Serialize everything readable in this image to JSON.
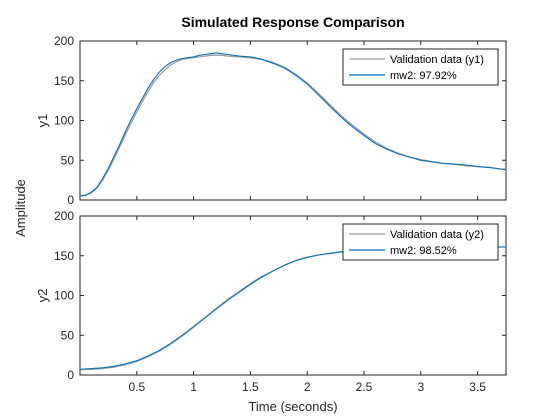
{
  "chart_data": {
    "type": "line",
    "title": "Simulated Response Comparison",
    "xlabel": "Time (seconds)",
    "shared_ylabel": "Amplitude",
    "grid": false,
    "x_ticks": [
      0.5,
      1,
      1.5,
      2,
      2.5,
      3,
      3.5
    ],
    "colors": {
      "validation": "#a0a0a0",
      "model": "#0072bd",
      "axes": "#262626"
    },
    "subplots": [
      {
        "ylabel": "y1",
        "xlim": [
          0.0,
          3.75
        ],
        "ylim": [
          0,
          200
        ],
        "y_ticks": [
          0,
          50,
          100,
          150,
          200
        ],
        "legend_position": "top-right",
        "series": [
          {
            "name": "Validation data (y1)",
            "x": [
              0.0,
              0.05,
              0.1,
              0.15,
              0.2,
              0.25,
              0.3,
              0.35,
              0.4,
              0.45,
              0.5,
              0.55,
              0.6,
              0.65,
              0.7,
              0.75,
              0.8,
              0.85,
              0.9,
              0.95,
              1.0,
              1.05,
              1.1,
              1.15,
              1.2,
              1.25,
              1.3,
              1.4,
              1.5,
              1.6,
              1.7,
              1.8,
              1.9,
              2.0,
              2.1,
              2.2,
              2.3,
              2.4,
              2.5,
              2.6,
              2.7,
              2.8,
              2.9,
              3.0,
              3.1,
              3.2,
              3.3,
              3.4,
              3.5,
              3.6,
              3.7,
              3.75
            ],
            "values": [
              5,
              6,
              9,
              15,
              25,
              38,
              52,
              67,
              82,
              97,
              111,
              124,
              137,
              148,
              157,
              164,
              170,
              174,
              177,
              178,
              179,
              180,
              181,
              182,
              182,
              182,
              181,
              180,
              179,
              177,
              173,
              167,
              158,
              147,
              134,
              120,
              106,
              94,
              83,
              73,
              65,
              59,
              54,
              51,
              48,
              46,
              45,
              43,
              42,
              41,
              39,
              39
            ]
          },
          {
            "name": "mw2: 97.92%",
            "x": [
              0.0,
              0.05,
              0.1,
              0.15,
              0.2,
              0.25,
              0.3,
              0.35,
              0.4,
              0.45,
              0.5,
              0.55,
              0.6,
              0.65,
              0.7,
              0.75,
              0.8,
              0.85,
              0.9,
              0.95,
              1.0,
              1.05,
              1.1,
              1.15,
              1.2,
              1.25,
              1.3,
              1.4,
              1.5,
              1.6,
              1.7,
              1.8,
              1.9,
              2.0,
              2.1,
              2.2,
              2.3,
              2.4,
              2.5,
              2.6,
              2.7,
              2.8,
              2.9,
              3.0,
              3.1,
              3.2,
              3.3,
              3.4,
              3.5,
              3.6,
              3.7,
              3.75
            ],
            "values": [
              5,
              6,
              10,
              16,
              27,
              40,
              55,
              70,
              86,
              101,
              115,
              128,
              141,
              152,
              161,
              168,
              173,
              176,
              178,
              179,
              180,
              182,
              183,
              184,
              185,
              184,
              183,
              181,
              180,
              177,
              172,
              166,
              157,
              146,
              132,
              118,
              104,
              92,
              81,
              71,
              64,
              58,
              54,
              50,
              48,
              46,
              45,
              44,
              42,
              41,
              39,
              38
            ]
          }
        ]
      },
      {
        "ylabel": "y2",
        "xlim": [
          0.0,
          3.75
        ],
        "ylim": [
          0,
          200
        ],
        "y_ticks": [
          0,
          50,
          100,
          150,
          200
        ],
        "legend_position": "top-right",
        "series": [
          {
            "name": "Validation data (y2)",
            "x": [
              0.0,
              0.1,
              0.2,
              0.3,
              0.4,
              0.5,
              0.6,
              0.7,
              0.8,
              0.9,
              1.0,
              1.1,
              1.2,
              1.3,
              1.4,
              1.5,
              1.6,
              1.7,
              1.8,
              1.9,
              2.0,
              2.1,
              2.2,
              2.3,
              2.4,
              2.5,
              2.6,
              2.7,
              2.8,
              2.9,
              3.0,
              3.1,
              3.2,
              3.3,
              3.4,
              3.5,
              3.6,
              3.7,
              3.75
            ],
            "values": [
              7,
              7,
              8,
              10,
              13,
              17,
              23,
              30,
              39,
              49,
              60,
              72,
              84,
              95,
              105,
              115,
              124,
              131,
              138,
              144,
              148,
              151,
              153,
              155,
              157,
              158,
              159,
              160,
              160,
              160,
              161,
              161,
              161,
              161,
              161,
              161,
              161,
              161,
              161
            ]
          },
          {
            "name": "mw2: 98.52%",
            "x": [
              0.0,
              0.1,
              0.2,
              0.3,
              0.4,
              0.5,
              0.6,
              0.7,
              0.8,
              0.9,
              1.0,
              1.1,
              1.2,
              1.3,
              1.4,
              1.5,
              1.6,
              1.7,
              1.8,
              1.9,
              2.0,
              2.1,
              2.2,
              2.3,
              2.4,
              2.5,
              2.6,
              2.7,
              2.8,
              2.9,
              3.0,
              3.1,
              3.2,
              3.3,
              3.4,
              3.5,
              3.6,
              3.7,
              3.75
            ],
            "values": [
              7,
              8,
              9,
              11,
              14,
              18,
              24,
              31,
              40,
              50,
              61,
              72,
              83,
              94,
              104,
              114,
              123,
              131,
              138,
              144,
              148,
              151,
              153,
              155,
              157,
              158,
              159,
              160,
              160,
              161,
              161,
              161,
              161,
              161,
              161,
              161,
              161,
              161,
              161
            ]
          }
        ]
      }
    ]
  }
}
